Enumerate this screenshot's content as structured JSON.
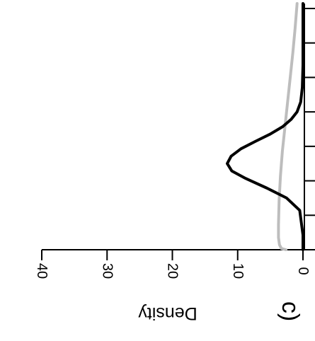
{
  "chart_data": {
    "type": "line",
    "panel_label": "c)",
    "title": "",
    "xlabel": "",
    "ylabel": "Density",
    "orientation": "rotated 180 degrees",
    "ylim": [
      0,
      40
    ],
    "y_ticks": [
      0,
      10,
      20,
      30,
      40
    ],
    "x_tick_count": 8,
    "grid": false,
    "legend": "none",
    "series": [
      {
        "color": "#000000",
        "values": [
          [
            0.0,
            0.0
          ],
          [
            0.06,
            0.0
          ],
          [
            0.16,
            0.5
          ],
          [
            0.21,
            2.5
          ],
          [
            0.25,
            5.5
          ],
          [
            0.29,
            8.8
          ],
          [
            0.32,
            10.9
          ],
          [
            0.35,
            11.6
          ],
          [
            0.38,
            11.0
          ],
          [
            0.41,
            9.5
          ],
          [
            0.44,
            7.3
          ],
          [
            0.47,
            5.0
          ],
          [
            0.5,
            3.1
          ],
          [
            0.53,
            1.8
          ],
          [
            0.56,
            0.9
          ],
          [
            0.6,
            0.35
          ],
          [
            0.66,
            0.1
          ],
          [
            0.75,
            0.0
          ],
          [
            1.0,
            0.0
          ]
        ]
      },
      {
        "color": "#bdbdbd",
        "values": [
          [
            0.0,
            2.6
          ],
          [
            0.005,
            3.3
          ],
          [
            0.02,
            3.6
          ],
          [
            0.05,
            3.75
          ],
          [
            0.1,
            3.75
          ],
          [
            0.2,
            3.65
          ],
          [
            0.3,
            3.45
          ],
          [
            0.4,
            3.15
          ],
          [
            0.5,
            2.75
          ],
          [
            0.6,
            2.35
          ],
          [
            0.7,
            1.95
          ],
          [
            0.8,
            1.55
          ],
          [
            0.9,
            1.2
          ],
          [
            1.0,
            0.9
          ]
        ]
      }
    ]
  }
}
